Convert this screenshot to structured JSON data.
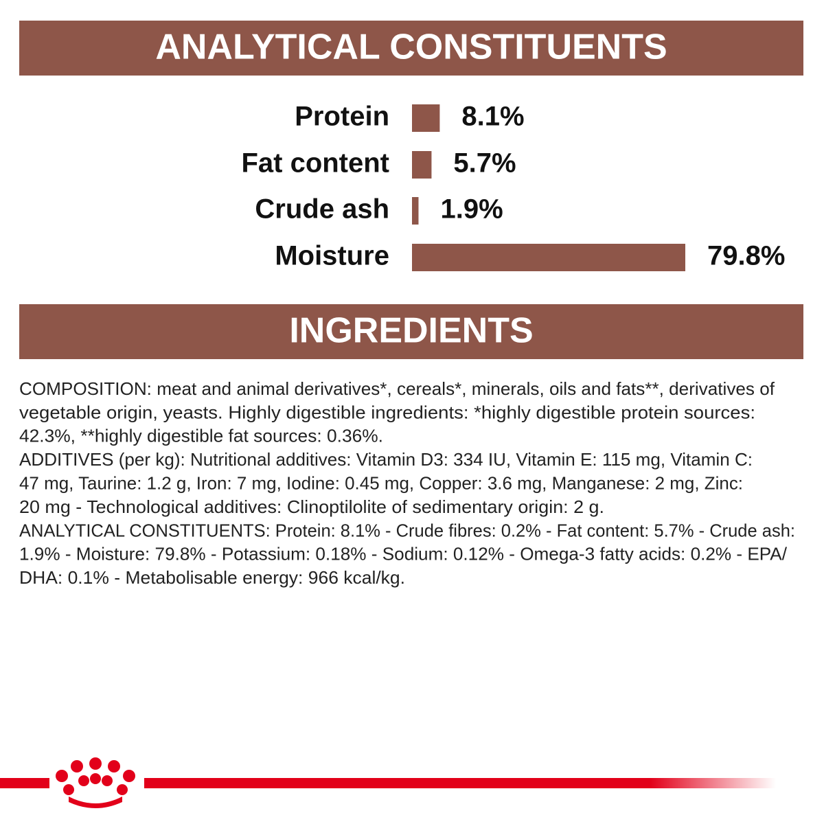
{
  "headers": {
    "analytical": "ANALYTICAL CONSTITUENTS",
    "ingredients": "INGREDIENTS"
  },
  "chart_data": {
    "type": "bar",
    "orientation": "horizontal",
    "color": "#8e5649",
    "categories": [
      "Protein",
      "Fat content",
      "Crude ash",
      "Moisture"
    ],
    "values": [
      8.1,
      5.7,
      1.9,
      79.8
    ],
    "value_labels": [
      "8.1%",
      "5.7%",
      "1.9%",
      "79.8%"
    ]
  },
  "ingredients": {
    "lines": [
      "COMPOSITION: meat and animal derivatives*, cereals*, minerals, oils and fats**, derivatives of",
      "vegetable origin, yeasts. Highly digestible ingredients: *highly digestible protein sources:",
      "42.3%, **highly digestible fat sources: 0.36%.",
      "ADDITIVES (per kg): Nutritional additives: Vitamin D3: 334 IU, Vitamin E: 115 mg, Vitamin C:",
      "47 mg, Taurine: 1.2 g, Iron: 7 mg, Iodine: 0.45 mg, Copper: 3.6 mg, Manganese: 2 mg, Zinc:",
      "20 mg - Technological additives: Clinoptilolite of sedimentary origin: 2 g.",
      "ANALYTICAL CONSTITUENTS: Protein: 8.1% - Crude fibres: 0.2% - Fat content: 5.7% - Crude ash:",
      "1.9% - Moisture: 79.8% - Potassium: 0.18% - Sodium: 0.12% - Omega-3 fatty acids: 0.2% - EPA/",
      "DHA: 0.1% - Metabolisable energy: 966 kcal/kg."
    ]
  }
}
